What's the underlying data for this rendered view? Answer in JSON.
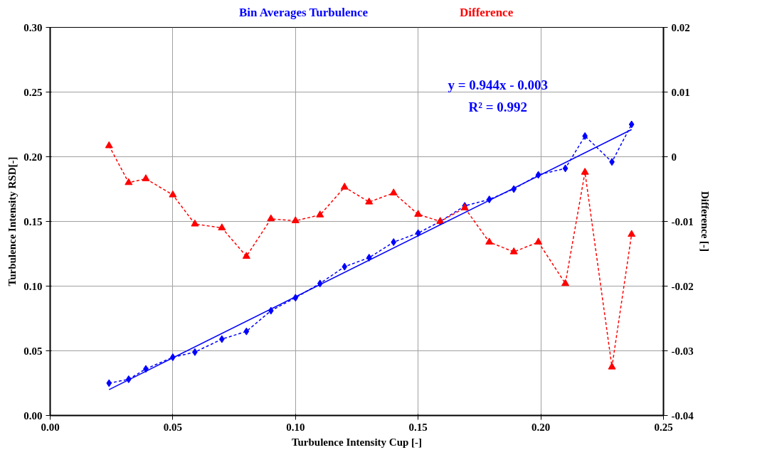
{
  "chart_data": {
    "type": "line",
    "xlabel": "Turbulence Intensity Cup [-]",
    "ylabel": "Turbulence Intensity RSD[-]",
    "y2label": "Difference [-]",
    "x": [
      0.024,
      0.032,
      0.039,
      0.05,
      0.059,
      0.07,
      0.08,
      0.09,
      0.1,
      0.11,
      0.12,
      0.13,
      0.14,
      0.15,
      0.159,
      0.169,
      0.179,
      0.189,
      0.199,
      0.21,
      0.218,
      0.229,
      0.237
    ],
    "series": [
      {
        "name": "Bin Averages Turbulence",
        "color": "#0000ff",
        "marker": "diamond",
        "line_style": "dashed",
        "values": [
          0.025,
          0.028,
          0.036,
          0.045,
          0.049,
          0.059,
          0.065,
          0.081,
          0.091,
          0.102,
          0.115,
          0.122,
          0.134,
          0.141,
          0.15,
          0.162,
          0.167,
          0.175,
          0.186,
          0.191,
          0.216,
          0.196,
          0.225
        ]
      },
      {
        "name": "Difference",
        "color": "#ff0000",
        "marker": "triangle",
        "line_style": "dashed",
        "axis": "y2",
        "values": [
          0.0017,
          -0.004,
          -0.0034,
          -0.0059,
          -0.0104,
          -0.011,
          -0.0154,
          -0.0096,
          -0.0099,
          -0.009,
          -0.0047,
          -0.007,
          -0.0056,
          -0.0089,
          -0.01,
          -0.0079,
          -0.0132,
          -0.0147,
          -0.0132,
          -0.0196,
          -0.0024,
          -0.0325,
          -0.012
        ]
      },
      {
        "color": "#0000ff",
        "marker": "none",
        "line_style": "solid",
        "x": [
          0.024,
          0.237
        ],
        "values": [
          0.02,
          0.221
        ]
      }
    ],
    "annotations": [
      "y = 0.944x - 0.003",
      "R² = 0.992"
    ],
    "xlim": [
      0,
      0.25
    ],
    "xticks": [
      {
        "value": 0,
        "label": "0.00"
      },
      {
        "value": 0.05,
        "label": "0.05"
      },
      {
        "value": 0.1,
        "label": "0.10"
      },
      {
        "value": 0.15,
        "label": "0.15"
      },
      {
        "value": 0.2,
        "label": "0.20"
      },
      {
        "value": 0.25,
        "label": "0.25"
      }
    ],
    "ylim": [
      0,
      0.3
    ],
    "yticks": [
      {
        "value": 0,
        "label": "0.00"
      },
      {
        "value": 0.05,
        "label": "0.05"
      },
      {
        "value": 0.1,
        "label": "0.10"
      },
      {
        "value": 0.15,
        "label": "0.15"
      },
      {
        "value": 0.2,
        "label": "0.20"
      },
      {
        "value": 0.25,
        "label": "0.25"
      },
      {
        "value": 0.3,
        "label": "0.30"
      }
    ],
    "y2lim": [
      -0.04,
      0.02
    ],
    "y2ticks": [
      -0.04,
      -0.03,
      -0.02,
      -0.01,
      0,
      0.01,
      0.02
    ],
    "grid": true,
    "legend": "top"
  }
}
